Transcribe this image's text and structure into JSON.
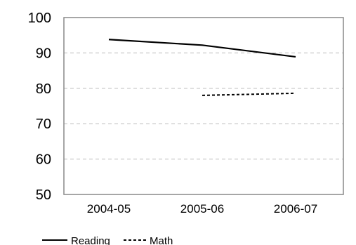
{
  "chart_data": {
    "type": "line",
    "categories": [
      "2004-05",
      "2005-06",
      "2006-07"
    ],
    "series": [
      {
        "name": "Reading",
        "values": [
          93.8,
          92.2,
          88.9
        ],
        "line_style": "solid"
      },
      {
        "name": "Math",
        "values": [
          null,
          78.0,
          78.6
        ],
        "line_style": "dashed"
      }
    ],
    "ylim": [
      50,
      100
    ],
    "yticks": [
      50,
      60,
      70,
      80,
      90,
      100
    ],
    "grid": true,
    "legend_position": "bottom-left",
    "colors": {
      "line": "#000000",
      "gridline": "#bbbbbb",
      "frame": "#888888"
    }
  }
}
